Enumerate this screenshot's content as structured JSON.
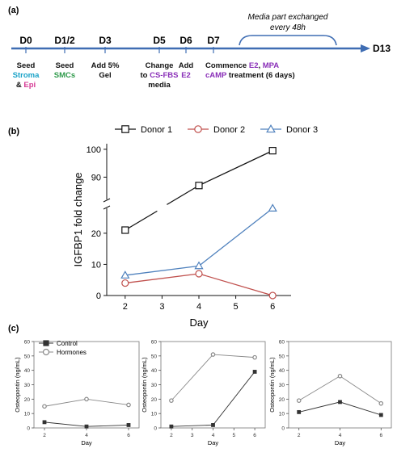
{
  "panel_labels": {
    "a": "(a)",
    "b": "(b)",
    "c": "(c)"
  },
  "colors": {
    "timeline": "#3f6db3",
    "stroma": "#1aa3c8",
    "epi": "#d63a94",
    "smc": "#2e9a4a",
    "purple": "#8a2fb8",
    "donor1": "#111111",
    "donor2": "#c0504d",
    "donor3": "#4f81bd",
    "control": "#333333",
    "hormones": "#888888"
  },
  "timeline": {
    "end_label": "D13",
    "bracket_note": [
      "Media part exchanged",
      "every 48h"
    ],
    "days": [
      {
        "label": "D0",
        "lines": [
          [
            {
              "t": "Seed",
              "c": "black"
            }
          ],
          [
            {
              "t": "Stroma",
              "c": "stroma"
            }
          ],
          [
            {
              "t": "& ",
              "c": "black"
            },
            {
              "t": "Epi",
              "c": "epi"
            }
          ]
        ]
      },
      {
        "label": "D1/2",
        "lines": [
          [
            {
              "t": "Seed",
              "c": "black"
            }
          ],
          [
            {
              "t": "SMCs",
              "c": "smc"
            }
          ]
        ]
      },
      {
        "label": "D3",
        "lines": [
          [
            {
              "t": "Add 5%",
              "c": "black"
            }
          ],
          [
            {
              "t": "Gel",
              "c": "black"
            }
          ]
        ]
      },
      {
        "label": "D5",
        "lines": [
          [
            {
              "t": "Change",
              "c": "black"
            }
          ],
          [
            {
              "t": "to ",
              "c": "black"
            },
            {
              "t": "CS-FBS",
              "c": "purple"
            }
          ],
          [
            {
              "t": "media",
              "c": "black"
            }
          ]
        ]
      },
      {
        "label": "D6",
        "lines": [
          [
            {
              "t": "Add",
              "c": "black"
            }
          ],
          [
            {
              "t": "E2",
              "c": "purple"
            }
          ]
        ]
      },
      {
        "label": "D7",
        "lines": [
          [
            {
              "t": "Commence ",
              "c": "black"
            },
            {
              "t": "E2",
              "c": "purple"
            },
            {
              "t": ", ",
              "c": "black"
            },
            {
              "t": "MPA",
              "c": "purple"
            }
          ],
          [
            {
              "t": "cAMP",
              "c": "purple"
            },
            {
              "t": " treatment (6 days)",
              "c": "black"
            }
          ]
        ]
      }
    ]
  },
  "chart_data": [
    {
      "type": "line",
      "xlabel": "Day",
      "ylabel": "IGFBP1 fold change",
      "x": [
        2,
        4,
        6
      ],
      "xticks": [
        2,
        3,
        4,
        5,
        6
      ],
      "y_lower": {
        "ticks": [
          0,
          10,
          20
        ],
        "range": [
          0,
          28
        ]
      },
      "y_upper": {
        "ticks": [
          90,
          100
        ],
        "range": [
          82,
          102
        ]
      },
      "y_break": true,
      "legend_position": "top",
      "series": [
        {
          "name": "Donor 1",
          "marker": "square",
          "color": "donor1",
          "values": [
            21,
            87,
            99.5
          ]
        },
        {
          "name": "Donor 2",
          "marker": "circle",
          "color": "donor2",
          "values": [
            4,
            7,
            0
          ]
        },
        {
          "name": "Donor 3",
          "marker": "triangle",
          "color": "donor3",
          "values": [
            6.5,
            9.5,
            28
          ]
        }
      ]
    },
    {
      "type": "line",
      "xlabel": "Day",
      "ylabel": "Osteopontin (ng/mL)",
      "x": [
        2,
        4,
        6
      ],
      "xticks": [
        2,
        4,
        6
      ],
      "yticks": [
        0,
        10,
        20,
        30,
        40,
        50,
        60
      ],
      "ylim": [
        0,
        60
      ],
      "legend_position": "top-left",
      "series": [
        {
          "name": "Control",
          "marker": "square",
          "color": "control",
          "values": [
            4,
            1,
            2
          ]
        },
        {
          "name": "Hormones",
          "marker": "circle",
          "color": "hormones",
          "values": [
            15,
            20,
            16
          ]
        }
      ]
    },
    {
      "type": "line",
      "xlabel": "Day",
      "ylabel": "Osteopontin (ng/mL)",
      "x": [
        2,
        4,
        6
      ],
      "xticks": [
        2,
        3,
        4,
        5,
        6
      ],
      "yticks": [
        0,
        10,
        20,
        30,
        40,
        50,
        60
      ],
      "ylim": [
        0,
        60
      ],
      "series": [
        {
          "marker": "square",
          "color": "control",
          "values": [
            1,
            2,
            39
          ]
        },
        {
          "marker": "circle",
          "color": "hormones",
          "values": [
            19,
            51,
            49
          ]
        }
      ]
    },
    {
      "type": "line",
      "xlabel": "Day",
      "ylabel": "Osteopontin (ng/mL)",
      "x": [
        2,
        4,
        6
      ],
      "xticks": [
        2,
        4,
        6
      ],
      "yticks": [
        0,
        10,
        20,
        30,
        40,
        50,
        60
      ],
      "ylim": [
        0,
        60
      ],
      "series": [
        {
          "marker": "square",
          "color": "control",
          "values": [
            11,
            18,
            9
          ]
        },
        {
          "marker": "circle",
          "color": "hormones",
          "values": [
            19,
            36,
            17
          ]
        }
      ]
    }
  ]
}
